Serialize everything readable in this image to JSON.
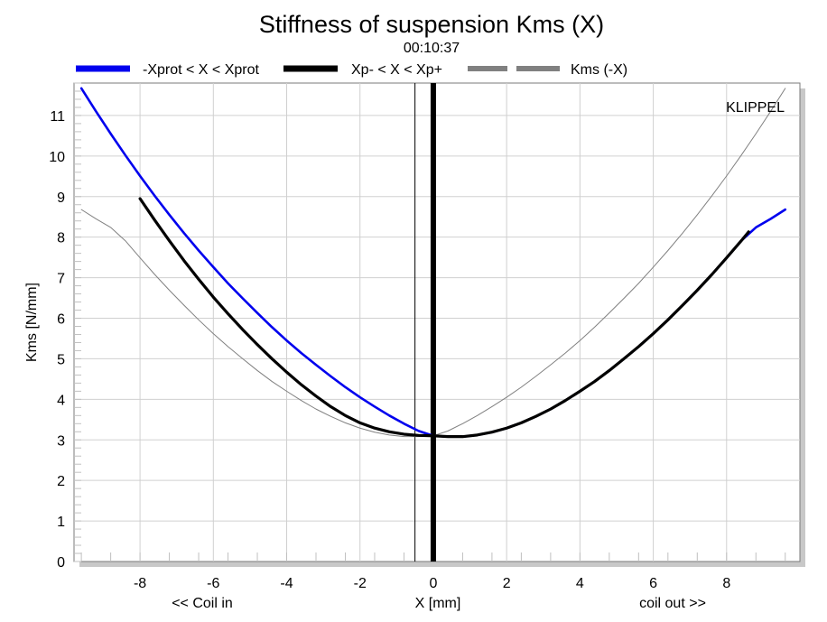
{
  "chart_data": {
    "type": "line",
    "title": "Stiffness of suspension Kms (X)",
    "subtitle": "00:10:37",
    "xlabel": "X [mm]",
    "ylabel": "Kms [N/mm]",
    "x_left_note": "<< Coil in",
    "x_right_note": "coil out >>",
    "annotation": "KLIPPEL",
    "xlim": [
      -9.8,
      10
    ],
    "ylim": [
      0,
      11.8
    ],
    "xticks": [
      -8,
      -6,
      -4,
      -2,
      0,
      2,
      4,
      6,
      8
    ],
    "yticks": [
      0,
      1,
      2,
      3,
      4,
      5,
      6,
      7,
      8,
      9,
      10,
      11
    ],
    "grid": true,
    "legend_position": "top",
    "vertical_markers": [
      {
        "x": -0.5,
        "style": "thin"
      },
      {
        "x": 0,
        "style": "thick"
      }
    ],
    "series": [
      {
        "name": "-Xprot < X < Xprot",
        "color": "#0000ee",
        "style": "solid",
        "x": [
          -9.6,
          -9.2,
          -8.8,
          -8.4,
          -8.0,
          -7.6,
          -7.2,
          -6.8,
          -6.4,
          -6.0,
          -5.6,
          -5.2,
          -4.8,
          -4.4,
          -4.0,
          -3.6,
          -3.2,
          -2.8,
          -2.4,
          -2.0,
          -1.6,
          -1.2,
          -0.8,
          -0.4,
          0.0,
          0.4,
          0.8,
          1.2,
          1.6,
          2.0,
          2.4,
          2.8,
          3.2,
          3.6,
          4.0,
          4.4,
          4.8,
          5.2,
          5.6,
          6.0,
          6.4,
          6.8,
          7.2,
          7.6,
          8.0,
          8.4,
          8.8,
          9.2,
          9.6
        ],
        "y": [
          11.67,
          11.1,
          10.55,
          10.02,
          9.51,
          9.02,
          8.55,
          8.1,
          7.67,
          7.26,
          6.86,
          6.49,
          6.13,
          5.78,
          5.45,
          5.14,
          4.85,
          4.57,
          4.3,
          4.05,
          3.82,
          3.6,
          3.4,
          3.22,
          3.1,
          3.08,
          3.08,
          3.12,
          3.19,
          3.29,
          3.42,
          3.58,
          3.76,
          3.97,
          4.2,
          4.44,
          4.71,
          5.0,
          5.3,
          5.62,
          5.96,
          6.32,
          6.69,
          7.08,
          7.49,
          7.91,
          8.24,
          8.45,
          8.68
        ]
      },
      {
        "name": "Xp- < X < Xp+",
        "color": "#000000",
        "style": "solid-thick",
        "x": [
          -8.0,
          -7.6,
          -7.2,
          -6.8,
          -6.4,
          -6.0,
          -5.6,
          -5.2,
          -4.8,
          -4.4,
          -4.0,
          -3.6,
          -3.2,
          -2.8,
          -2.4,
          -2.0,
          -1.6,
          -1.2,
          -0.8,
          -0.4,
          0.0,
          0.4,
          0.8,
          1.2,
          1.6,
          2.0,
          2.4,
          2.8,
          3.2,
          3.6,
          4.0,
          4.4,
          4.8,
          5.2,
          5.6,
          6.0,
          6.4,
          6.8,
          7.2,
          7.6,
          8.0,
          8.4,
          8.6
        ],
        "y": [
          8.95,
          8.42,
          7.91,
          7.42,
          6.96,
          6.52,
          6.11,
          5.72,
          5.35,
          5.0,
          4.67,
          4.36,
          4.08,
          3.82,
          3.6,
          3.42,
          3.29,
          3.2,
          3.14,
          3.11,
          3.1,
          3.08,
          3.08,
          3.12,
          3.19,
          3.29,
          3.42,
          3.58,
          3.76,
          3.97,
          4.2,
          4.44,
          4.71,
          5.0,
          5.3,
          5.62,
          5.96,
          6.32,
          6.69,
          7.08,
          7.49,
          7.91,
          8.13
        ]
      },
      {
        "name": "Kms (-X)",
        "color": "#808080",
        "style": "dashed",
        "x": [
          -9.6,
          -9.2,
          -8.8,
          -8.4,
          -8.0,
          -7.6,
          -7.2,
          -6.8,
          -6.4,
          -6.0,
          -5.6,
          -5.2,
          -4.8,
          -4.4,
          -4.0,
          -3.6,
          -3.2,
          -2.8,
          -2.4,
          -2.0,
          -1.6,
          -1.2,
          -0.8,
          -0.4,
          0.0,
          0.4,
          0.8,
          1.2,
          1.6,
          2.0,
          2.4,
          2.8,
          3.2,
          3.6,
          4.0,
          4.4,
          4.8,
          5.2,
          5.6,
          6.0,
          6.4,
          6.8,
          7.2,
          7.6,
          8.0,
          8.4,
          8.8,
          9.2,
          9.6
        ],
        "y": [
          8.68,
          8.45,
          8.24,
          7.91,
          7.49,
          7.08,
          6.69,
          6.32,
          5.96,
          5.62,
          5.3,
          5.0,
          4.71,
          4.44,
          4.2,
          3.97,
          3.76,
          3.58,
          3.42,
          3.29,
          3.19,
          3.12,
          3.08,
          3.08,
          3.1,
          3.22,
          3.4,
          3.6,
          3.82,
          4.05,
          4.3,
          4.57,
          4.85,
          5.14,
          5.45,
          5.78,
          6.13,
          6.49,
          6.86,
          7.26,
          7.67,
          8.1,
          8.55,
          9.02,
          9.51,
          10.02,
          10.55,
          11.1,
          11.67
        ]
      }
    ]
  }
}
